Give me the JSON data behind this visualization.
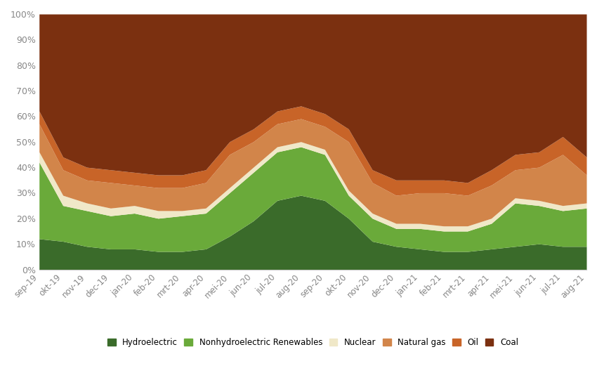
{
  "categories": [
    "sep-19",
    "okt-19",
    "nov-19",
    "dec-19",
    "jan-20",
    "feb-20",
    "mrt-20",
    "apr-20",
    "mei-20",
    "jun-20",
    "jul-20",
    "aug-20",
    "sep-20",
    "okt-20",
    "nov-20",
    "dec-20",
    "jan-21",
    "feb-21",
    "mrt-21",
    "apr-21",
    "mei-21",
    "jun-21",
    "jul-21",
    "aug-21"
  ],
  "hydroelectric": [
    12,
    11,
    9,
    8,
    8,
    7,
    7,
    8,
    13,
    19,
    27,
    29,
    27,
    20,
    11,
    9,
    8,
    7,
    7,
    8,
    9,
    10,
    9,
    9
  ],
  "nonhydro_renewables": [
    30,
    14,
    14,
    13,
    14,
    13,
    14,
    14,
    17,
    19,
    19,
    19,
    18,
    9,
    9,
    7,
    8,
    8,
    8,
    10,
    17,
    15,
    14,
    15
  ],
  "nuclear": [
    4,
    4,
    3,
    3,
    3,
    3,
    2,
    2,
    2,
    2,
    2,
    2,
    2,
    2,
    2,
    2,
    2,
    2,
    2,
    2,
    2,
    2,
    2,
    2
  ],
  "natural_gas": [
    11,
    10,
    9,
    10,
    8,
    9,
    9,
    10,
    13,
    10,
    9,
    9,
    9,
    19,
    12,
    11,
    12,
    13,
    12,
    13,
    11,
    13,
    20,
    11
  ],
  "oil": [
    5,
    5,
    5,
    5,
    5,
    5,
    5,
    5,
    5,
    5,
    5,
    5,
    5,
    5,
    5,
    6,
    5,
    5,
    5,
    6,
    6,
    6,
    7,
    7
  ],
  "coal": [
    38,
    56,
    60,
    61,
    62,
    63,
    63,
    61,
    50,
    45,
    38,
    36,
    39,
    45,
    61,
    65,
    65,
    65,
    66,
    61,
    55,
    54,
    48,
    56
  ],
  "colors": {
    "hydroelectric": "#3a6b2a",
    "nonhydro_renewables": "#6aaa3a",
    "nuclear": "#f0e8c8",
    "natural_gas": "#d2854a",
    "oil": "#c86428",
    "coal": "#7b3010"
  },
  "legend_labels": [
    "Hydroelectric",
    "Nonhydroelectric Renewables",
    "Nuclear",
    "Natural gas",
    "Oil",
    "Coal"
  ],
  "yticks": [
    0,
    10,
    20,
    30,
    40,
    50,
    60,
    70,
    80,
    90,
    100
  ],
  "ylim": [
    0,
    100
  ],
  "bg_color": "#ffffff",
  "tick_color": "#888888",
  "spine_color": "#cccccc"
}
